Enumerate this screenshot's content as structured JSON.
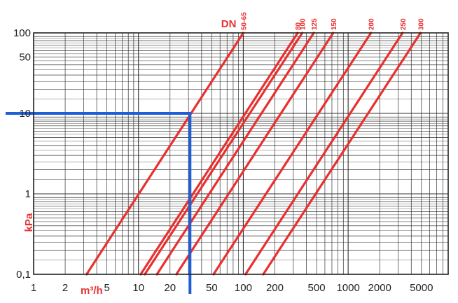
{
  "chart_data": {
    "type": "line",
    "title": "",
    "xlabel": "m³/h",
    "ylabel": "kPa",
    "x_scale": "log",
    "y_scale": "log",
    "xlim": [
      1,
      9000
    ],
    "ylim": [
      0.1,
      100
    ],
    "grid": true,
    "x_ticks": [
      1,
      2,
      5,
      10,
      20,
      50,
      100,
      200,
      500,
      1000,
      2000,
      5000
    ],
    "x_tick_labels": [
      "1",
      "2",
      "5",
      "10",
      "20",
      "50",
      "100",
      "200",
      "500",
      "1000",
      "2000",
      "5000"
    ],
    "y_ticks": [
      0.1,
      1,
      10,
      50,
      100
    ],
    "y_tick_labels": [
      "0,1",
      "1",
      "10",
      "50",
      "100"
    ],
    "legend_title": "DN",
    "series": [
      {
        "name": "50-65",
        "x": [
          3.2,
          100
        ],
        "y": [
          0.1,
          100
        ]
      },
      {
        "name": "80",
        "x": [
          10.5,
          330
        ],
        "y": [
          0.1,
          100
        ]
      },
      {
        "name": "100",
        "x": [
          11.5,
          365
        ],
        "y": [
          0.1,
          100
        ]
      },
      {
        "name": "125",
        "x": [
          15,
          470
        ],
        "y": [
          0.1,
          100
        ]
      },
      {
        "name": "150",
        "x": [
          23,
          720
        ],
        "y": [
          0.1,
          100
        ]
      },
      {
        "name": "200",
        "x": [
          52,
          1650
        ],
        "y": [
          0.1,
          100
        ]
      },
      {
        "name": "250",
        "x": [
          105,
          3300
        ],
        "y": [
          0.1,
          100
        ]
      },
      {
        "name": "300",
        "x": [
          155,
          4900
        ],
        "y": [
          0.1,
          100
        ]
      }
    ],
    "marker": {
      "x": 31,
      "y": 10
    },
    "colors": {
      "series": "#e8302f",
      "marker": "#1f5fd6",
      "grid": "#333333"
    }
  }
}
